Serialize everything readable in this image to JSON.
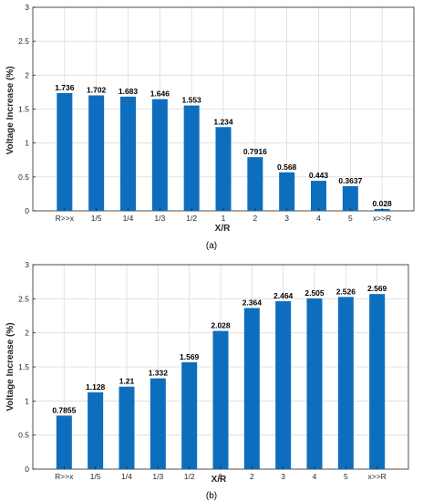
{
  "colors": {
    "bar": "#0d6ebe",
    "grid": "#dcdcdc"
  },
  "chart_data": [
    {
      "type": "bar",
      "caption": "(a)",
      "xlabel": "X/R",
      "ylabel": "Voltage Increase (%)",
      "ylim": [
        0,
        3
      ],
      "yticks": [
        "0",
        "0.5",
        "1",
        "1.5",
        "2",
        "2.5",
        "3"
      ],
      "grid": true,
      "categories": [
        "R>>x",
        "1/5",
        "1/4",
        "1/3",
        "1/2",
        "1",
        "2",
        "3",
        "4",
        "5",
        "x>>R"
      ],
      "values": [
        1.736,
        1.702,
        1.683,
        1.646,
        1.553,
        1.234,
        0.7916,
        0.568,
        0.443,
        0.3637,
        0.028
      ],
      "labels": [
        "1.736",
        "1.702",
        "1.683",
        "1.646",
        "1.553",
        "1.234",
        "0.7916",
        "0.568",
        "0.443",
        "0.3637",
        "0.028"
      ]
    },
    {
      "type": "bar",
      "caption": "(b)",
      "xlabel": "X/R",
      "ylabel": "Voltage Increase (%)",
      "ylim": [
        0,
        3
      ],
      "yticks": [
        "0",
        "0.5",
        "1",
        "1.5",
        "2",
        "2.5",
        "3"
      ],
      "grid": true,
      "categories": [
        "R>>x",
        "1/5",
        "1/4",
        "1/3",
        "1/2",
        "1",
        "2",
        "3",
        "4",
        "5",
        "x>>R"
      ],
      "values": [
        0.7855,
        1.128,
        1.21,
        1.332,
        1.569,
        2.028,
        2.364,
        2.464,
        2.505,
        2.526,
        2.569
      ],
      "labels": [
        "0.7855",
        "1.128",
        "1.21",
        "1.332",
        "1.569",
        "2.028",
        "2.364",
        "2.464",
        "2.505",
        "2.526",
        "2.569"
      ]
    }
  ]
}
